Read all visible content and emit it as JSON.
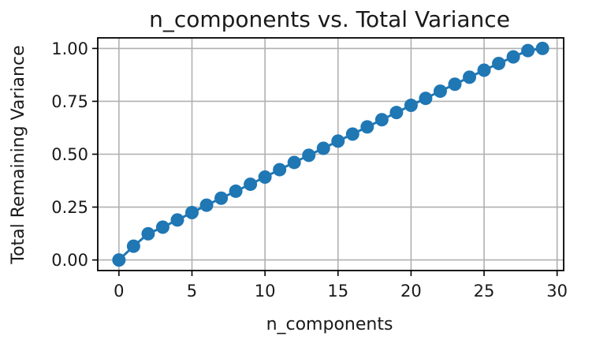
{
  "chart_data": {
    "type": "line",
    "title": "n_components vs. Total Variance",
    "xlabel": "n_components",
    "ylabel": "Total Remaining Variance",
    "xlim": [
      -1.45,
      30.45
    ],
    "ylim": [
      -0.05,
      1.05
    ],
    "x_ticks": [
      0,
      5,
      10,
      15,
      20,
      25,
      30
    ],
    "y_ticks": [
      0.0,
      0.25,
      0.5,
      0.75,
      1.0
    ],
    "x_tick_labels": [
      "0",
      "5",
      "10",
      "15",
      "20",
      "25",
      "30"
    ],
    "y_tick_labels": [
      "0.00",
      "0.25",
      "0.50",
      "0.75",
      "1.00"
    ],
    "grid": true,
    "series": [
      {
        "color": "#1f77b4",
        "marker": "circle",
        "x": [
          0,
          1,
          2,
          3,
          4,
          5,
          6,
          7,
          8,
          9,
          10,
          11,
          12,
          13,
          14,
          15,
          16,
          17,
          18,
          19,
          20,
          21,
          22,
          23,
          24,
          25,
          26,
          27,
          28,
          29
        ],
        "y": [
          0.0,
          0.065,
          0.124,
          0.155,
          0.189,
          0.224,
          0.259,
          0.292,
          0.325,
          0.358,
          0.392,
          0.427,
          0.461,
          0.495,
          0.528,
          0.562,
          0.595,
          0.629,
          0.663,
          0.697,
          0.731,
          0.764,
          0.798,
          0.831,
          0.864,
          0.897,
          0.929,
          0.96,
          0.99,
          1.0
        ]
      }
    ]
  }
}
